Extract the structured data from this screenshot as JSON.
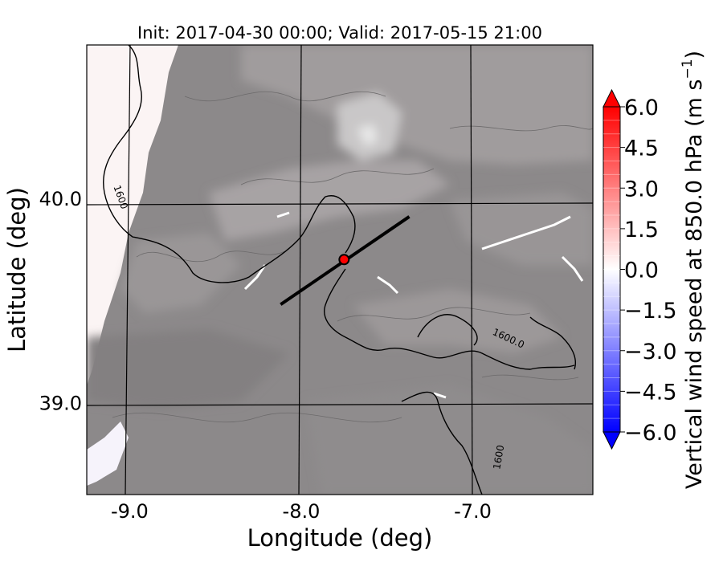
{
  "chart_data": {
    "type": "heatmap",
    "title": "Init: 2017-04-30 00:00; Valid: 2017-05-15 21:00",
    "xlabel": "Longitude (deg)",
    "ylabel": "Latitude (deg)",
    "xlim": [
      -9.25,
      -6.3
    ],
    "ylim": [
      38.55,
      40.75
    ],
    "x_ticks": [
      -9.0,
      -8.0,
      -7.0
    ],
    "x_tick_labels": [
      "-9.0",
      "-8.0",
      "-7.0"
    ],
    "y_ticks": [
      39.0,
      40.0
    ],
    "y_tick_labels": [
      "39.0",
      "40.0"
    ],
    "grid": true,
    "colorbar": {
      "label": "Vertical wind speed at 850.0 hPa (m s",
      "label_sup": "−1",
      "label_end": ")",
      "range": [
        -6.0,
        6.0
      ],
      "ticks": [
        6.0,
        4.5,
        3.0,
        1.5,
        0.0,
        -1.5,
        -3.0,
        -4.5,
        -6.0
      ],
      "tick_labels": [
        "6.0",
        "4.5",
        "3.0",
        "1.5",
        "0.0",
        "−1.5",
        "−3.0",
        "−4.5",
        "−6.0"
      ],
      "extend": "both",
      "colors": [
        "#0000ff",
        "#ffffff",
        "#ff0000"
      ]
    },
    "contour_labels": [
      {
        "text": "1600",
        "lon": -9.07,
        "lat": 40.0,
        "rotate": 70
      },
      {
        "text": "1600.0",
        "lon": -6.8,
        "lat": 39.3,
        "rotate": 25
      },
      {
        "text": "1600",
        "lon": -6.83,
        "lat": 38.73,
        "rotate": -80
      }
    ],
    "cross_section_line": {
      "start": [
        -8.12,
        39.48
      ],
      "end": [
        -7.37,
        39.91
      ]
    },
    "marker": {
      "lon": -7.75,
      "lat": 39.7,
      "color": "#ff0000"
    }
  }
}
